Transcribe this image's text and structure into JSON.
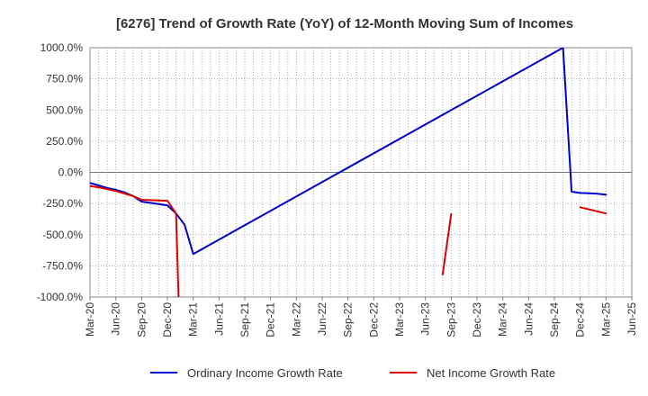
{
  "chart_data": {
    "type": "line",
    "title": "[6276]  Trend of Growth Rate (YoY) of 12-Month Moving Sum of Incomes",
    "xlabel": "",
    "ylabel": "",
    "ylim": [
      -1000,
      1000
    ],
    "y_ticks": [
      1000,
      750,
      500,
      250,
      0,
      -250,
      -500,
      -750,
      -1000
    ],
    "y_tick_labels": [
      "1000.0%",
      "750.0%",
      "500.0%",
      "250.0%",
      "0.0%",
      "-250.0%",
      "-500.0%",
      "-750.0%",
      "-1000.0%"
    ],
    "x_tick_labels": [
      "Mar-20",
      "Jun-20",
      "Sep-20",
      "Dec-20",
      "Mar-21",
      "Jun-21",
      "Sep-21",
      "Dec-21",
      "Mar-22",
      "Jun-22",
      "Sep-22",
      "Dec-22",
      "Mar-23",
      "Jun-23",
      "Sep-23",
      "Dec-23",
      "Mar-24",
      "Jun-24",
      "Sep-24",
      "Dec-24",
      "Mar-25",
      "Jun-25"
    ],
    "x_range_months": [
      "2020-03",
      "2025-06"
    ],
    "grid": true,
    "legend_position": "bottom",
    "series": [
      {
        "name": "Ordinary Income Growth Rate",
        "color": "#0000cc",
        "points": [
          {
            "x": "2020-03",
            "y": -85
          },
          {
            "x": "2020-04",
            "y": -105
          },
          {
            "x": "2020-05",
            "y": -125
          },
          {
            "x": "2020-06",
            "y": -140
          },
          {
            "x": "2020-07",
            "y": -160
          },
          {
            "x": "2020-08",
            "y": -190
          },
          {
            "x": "2020-09",
            "y": -235
          },
          {
            "x": "2020-10",
            "y": -245
          },
          {
            "x": "2020-11",
            "y": -255
          },
          {
            "x": "2020-12",
            "y": -265
          },
          {
            "x": "2021-01",
            "y": -330
          },
          {
            "x": "2021-02",
            "y": -420
          },
          {
            "x": "2021-03",
            "y": -655
          },
          {
            "x": "2024-10",
            "y": 1000
          },
          {
            "x": "2024-11",
            "y": -155
          },
          {
            "x": "2024-12",
            "y": -165
          },
          {
            "x": "2025-01",
            "y": -168
          },
          {
            "x": "2025-02",
            "y": -172
          },
          {
            "x": "2025-03",
            "y": -180
          }
        ]
      },
      {
        "name": "Net Income Growth Rate",
        "color": "#dd0000",
        "points": [
          {
            "x": "2020-03",
            "y": -110
          },
          {
            "x": "2020-04",
            "y": -120
          },
          {
            "x": "2020-05",
            "y": -135
          },
          {
            "x": "2020-06",
            "y": -150
          },
          {
            "x": "2020-07",
            "y": -170
          },
          {
            "x": "2020-08",
            "y": -190
          },
          {
            "x": "2020-09",
            "y": -220
          },
          {
            "x": "2020-12",
            "y": -228
          },
          {
            "x": "2021-01",
            "y": -330
          },
          {
            "x": "2021-01-10",
            "y": -1000
          },
          {
            "gap": true
          },
          {
            "x": "2023-08",
            "y": -820
          },
          {
            "x": "2023-09",
            "y": -335
          },
          {
            "gap": true
          },
          {
            "x": "2024-12",
            "y": -280
          },
          {
            "x": "2025-03",
            "y": -330
          }
        ]
      }
    ]
  }
}
